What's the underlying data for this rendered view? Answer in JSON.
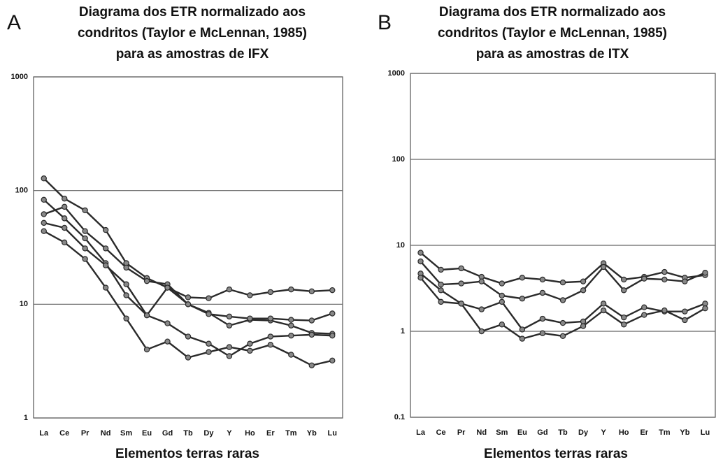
{
  "chart_data": [
    {
      "type": "line",
      "panel": "A",
      "title": [
        "Diagrama dos ETR normalizado aos",
        "condritos (Taylor e McLennan, 1985)",
        "para as amostras de IFX"
      ],
      "x_label": "Elementos terras raras",
      "categories": [
        "La",
        "Ce",
        "Pr",
        "Nd",
        "Sm",
        "Eu",
        "Gd",
        "Tb",
        "Dy",
        "Y",
        "Ho",
        "Er",
        "Tm",
        "Yb",
        "Lu"
      ],
      "log_scale": true,
      "grid": true,
      "ylim": [
        1,
        1000
      ],
      "yticks": [
        1,
        10,
        100,
        1000
      ],
      "series": [
        {
          "color": "#2a2a2a",
          "values": [
            128,
            85,
            67,
            45,
            23,
            17,
            14,
            10,
            8.4,
            6.5,
            7.3,
            7.2,
            6.5,
            5.6,
            5.5
          ]
        },
        {
          "color": "#2a2a2a",
          "values": [
            83,
            57,
            38,
            23,
            12,
            8,
            6.8,
            5.2,
            4.5,
            3.5,
            4.5,
            5.2,
            5.3,
            5.4,
            5.3
          ]
        },
        {
          "color": "#2a2a2a",
          "values": [
            62,
            72,
            44,
            31,
            21,
            16,
            15,
            10,
            8.2,
            7.8,
            7.5,
            7.5,
            7.3,
            7.2,
            8.3
          ]
        },
        {
          "color": "#2a2a2a",
          "values": [
            52,
            47,
            31,
            22,
            15,
            8,
            14,
            11.5,
            11.3,
            13.5,
            12,
            12.8,
            13.5,
            13,
            13.3
          ]
        },
        {
          "color": "#2a2a2a",
          "values": [
            44,
            35,
            25,
            14,
            7.5,
            4,
            4.7,
            3.4,
            3.8,
            4.2,
            3.9,
            4.4,
            3.6,
            2.9,
            3.2
          ]
        }
      ]
    },
    {
      "type": "line",
      "panel": "B",
      "title": [
        "Diagrama dos ETR normalizado aos",
        "condritos (Taylor e McLennan, 1985)",
        "para as amostras de ITX"
      ],
      "x_label": "Elementos terras raras",
      "categories": [
        "La",
        "Ce",
        "Pr",
        "Nd",
        "Sm",
        "Eu",
        "Gd",
        "Tb",
        "Dy",
        "Y",
        "Ho",
        "Er",
        "Tm",
        "Yb",
        "Lu"
      ],
      "log_scale": true,
      "grid": true,
      "ylim": [
        0.1,
        1000
      ],
      "yticks": [
        0.1,
        1,
        10,
        100,
        1000
      ],
      "series": [
        {
          "color": "#2a2a2a",
          "values": [
            8.2,
            5.2,
            5.4,
            4.3,
            3.6,
            4.2,
            4,
            3.7,
            3.8,
            6.2,
            4,
            4.3,
            4.9,
            4.2,
            4.5
          ]
        },
        {
          "color": "#2a2a2a",
          "values": [
            6.5,
            3.5,
            3.6,
            3.8,
            2.6,
            2.4,
            2.8,
            2.3,
            3,
            5.6,
            3,
            4.1,
            4,
            3.8,
            4.8
          ]
        },
        {
          "color": "#2a2a2a",
          "values": [
            4.7,
            3,
            2.1,
            1.8,
            2.2,
            1.05,
            1.4,
            1.25,
            1.3,
            2.1,
            1.45,
            1.9,
            1.7,
            1.7,
            2.1
          ]
        },
        {
          "color": "#2a2a2a",
          "values": [
            4.2,
            2.2,
            2.1,
            1,
            1.2,
            0.82,
            0.95,
            0.88,
            1.15,
            1.75,
            1.2,
            1.55,
            1.75,
            1.35,
            1.85
          ]
        }
      ]
    }
  ]
}
